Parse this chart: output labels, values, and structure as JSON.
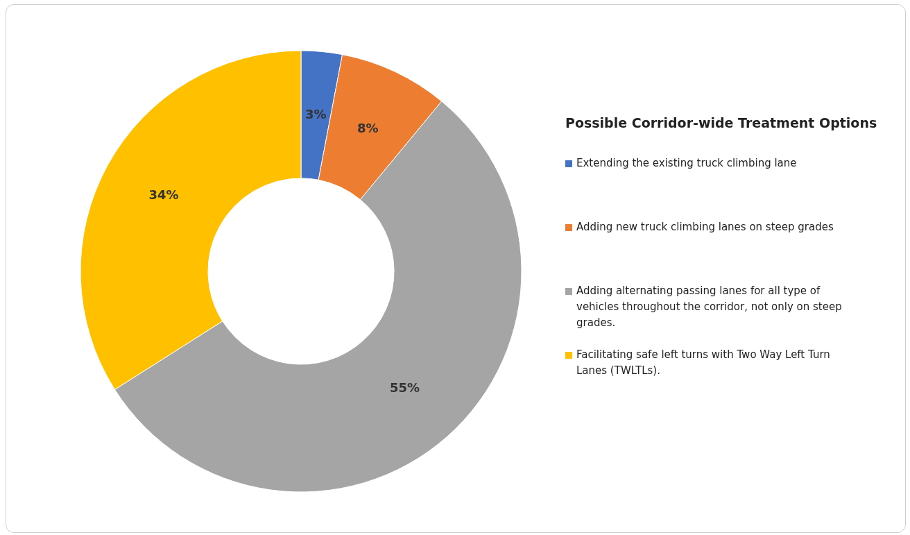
{
  "chart_data": {
    "type": "donut",
    "legend_title": "Possible Corridor-wide Treatment Options",
    "categories": [
      "Extending the existing truck climbing lane",
      "Adding new truck climbing lanes on steep grades",
      "Adding alternating passing lanes for all type of vehicles throughout the corridor, not only on steep grades.",
      "Facilitating safe left turns with Two Way Left Turn Lanes (TWLTLs)."
    ],
    "values": [
      3,
      8,
      55,
      34
    ],
    "colors": [
      "#4472c4",
      "#ed7d31",
      "#a5a5a5",
      "#ffc000"
    ],
    "value_labels": [
      "3%",
      "8%",
      "55%",
      "34%"
    ],
    "legend": "right"
  }
}
